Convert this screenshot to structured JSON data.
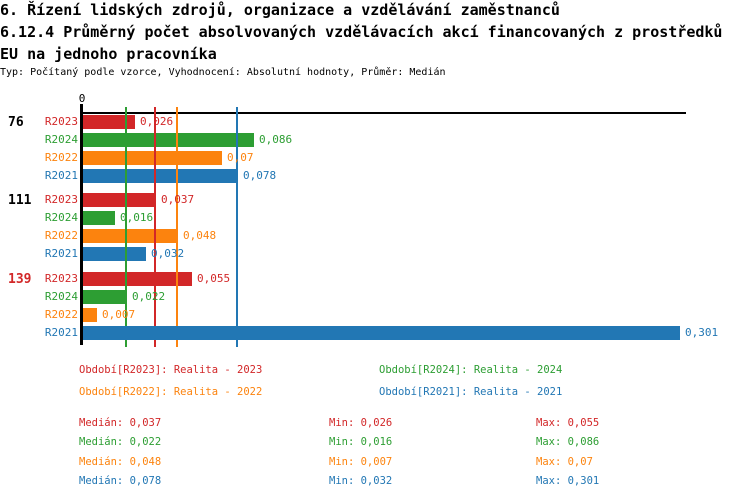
{
  "header": {
    "line1": "6. Řízení lidských zdrojů, organizace a vzdělávání zaměstnanců",
    "line2": "6.12.4 Průměrný počet absolvovaných vzdělávacích akcí financovaných z prostředků",
    "line3": "EU na jednoho pracovníka",
    "meta": "Typ: Počítaný podle vzorce, Vyhodnocení: Absolutní hodnoty, Průměr: Medián"
  },
  "chart_data": {
    "type": "bar",
    "orientation": "horizontal",
    "title": "6.12.4 Průměrný počet absolvovaných vzdělávacích akcí financovaných z prostředků EU na jednoho pracovníka",
    "xlim": [
      0,
      0.301
    ],
    "x_tick_labels": [
      "0"
    ],
    "zero_label": "0",
    "grid": false,
    "legend_position": "bottom",
    "categories": [
      "76",
      "111",
      "139"
    ],
    "category_label_colors": [
      "#000000",
      "#000000",
      "#d22728"
    ],
    "highlighted_category": "139",
    "median_lines": true,
    "series": [
      {
        "name": "R2023",
        "color": "#d22728",
        "legend": "Období[R2023]: Realita - 2023",
        "values": [
          0.026,
          0.037,
          0.055
        ],
        "value_labels": [
          "0,026",
          "0,037",
          "0,055"
        ],
        "median": 0.037,
        "stats": {
          "median": "0,037",
          "min": "0,026",
          "max": "0,055"
        }
      },
      {
        "name": "R2024",
        "color": "#2d9e33",
        "legend": "Období[R2024]: Realita - 2024",
        "values": [
          0.086,
          0.016,
          0.022
        ],
        "value_labels": [
          "0,086",
          "0,016",
          "0,022"
        ],
        "median": 0.022,
        "stats": {
          "median": "0,022",
          "min": "0,016",
          "max": "0,086"
        }
      },
      {
        "name": "R2022",
        "color": "#fc830e",
        "legend": "Období[R2022]: Realita - 2022",
        "values": [
          0.07,
          0.048,
          0.007
        ],
        "value_labels": [
          "0,07",
          "0,048",
          "0,007"
        ],
        "median": 0.048,
        "stats": {
          "median": "0,048",
          "min": "0,007",
          "max": "0,07"
        }
      },
      {
        "name": "R2021",
        "color": "#2277b4",
        "legend": "Období[R2021]: Realita - 2021",
        "values": [
          0.078,
          0.032,
          0.301
        ],
        "value_labels": [
          "0,078",
          "0,032",
          "0,301"
        ],
        "median": 0.078,
        "stats": {
          "median": "0,078",
          "min": "0,032",
          "max": "0,301"
        }
      }
    ],
    "stats_labels": {
      "median": "Medián",
      "min": "Min",
      "max": "Max"
    }
  }
}
